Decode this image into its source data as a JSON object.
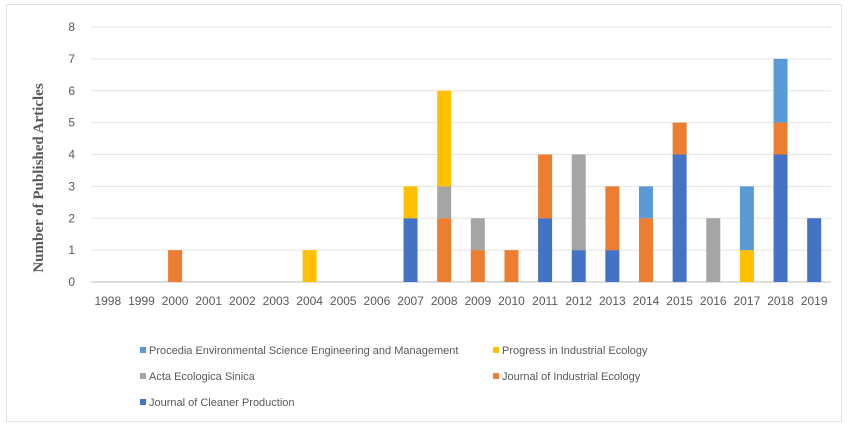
{
  "chart_data": {
    "type": "bar",
    "stacked": true,
    "title": "",
    "xlabel": "",
    "ylabel": "Number of Published Articles",
    "ylim": [
      0,
      8
    ],
    "yticks": [
      0,
      1,
      2,
      3,
      4,
      5,
      6,
      7,
      8
    ],
    "grid": true,
    "legend_position": "bottom",
    "categories": [
      "1998",
      "1999",
      "2000",
      "2001",
      "2002",
      "2003",
      "2004",
      "2005",
      "2006",
      "2007",
      "2008",
      "2009",
      "2010",
      "2011",
      "2012",
      "2013",
      "2014",
      "2015",
      "2016",
      "2017",
      "2018",
      "2019"
    ],
    "series": [
      {
        "name": "Journal of Cleaner Production",
        "color": "#4472C4",
        "values": [
          0,
          0,
          0,
          0,
          0,
          0,
          0,
          0,
          0,
          2,
          0,
          0,
          0,
          2,
          1,
          1,
          0,
          4,
          0,
          0,
          4,
          2
        ]
      },
      {
        "name": "Journal of Industrial Ecology",
        "color": "#ED7D31",
        "values": [
          0,
          0,
          1,
          0,
          0,
          0,
          0,
          0,
          0,
          0,
          2,
          1,
          1,
          2,
          0,
          2,
          2,
          1,
          0,
          0,
          1,
          0
        ]
      },
      {
        "name": "Acta Ecologica Sinica",
        "color": "#A5A5A5",
        "values": [
          0,
          0,
          0,
          0,
          0,
          0,
          0,
          0,
          0,
          0,
          1,
          1,
          0,
          0,
          3,
          0,
          0,
          0,
          2,
          0,
          0,
          0
        ]
      },
      {
        "name": "Progress in Industrial Ecology",
        "color": "#FFC000",
        "values": [
          0,
          0,
          0,
          0,
          0,
          0,
          1,
          0,
          0,
          1,
          3,
          0,
          0,
          0,
          0,
          0,
          0,
          0,
          0,
          1,
          0,
          0
        ]
      },
      {
        "name": "Procedia Environmental Science Engineering and Management",
        "color": "#5B9BD5",
        "values": [
          0,
          0,
          0,
          0,
          0,
          0,
          0,
          0,
          0,
          0,
          0,
          0,
          0,
          0,
          0,
          0,
          1,
          0,
          0,
          2,
          2,
          0
        ]
      }
    ],
    "legend_order": [
      "Procedia Environmental Science Engineering and Management",
      "Progress in Industrial Ecology",
      "Acta Ecologica Sinica",
      "Journal of Industrial Ecology",
      "Journal of Cleaner Production"
    ]
  }
}
